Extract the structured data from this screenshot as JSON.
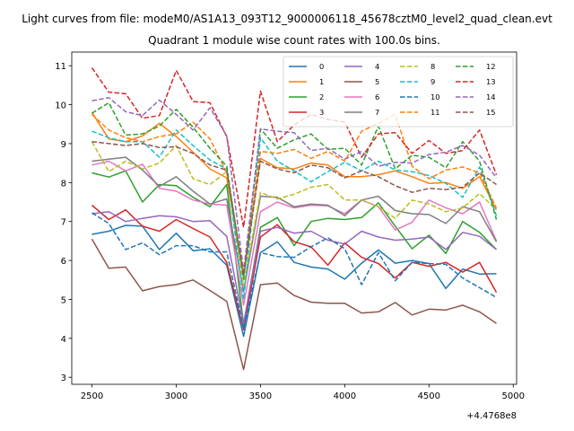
{
  "chart_data": {
    "type": "line",
    "title_line1": "Light curves from file: modeM0/AS1A13_093T12_9000006118_45678cztM0_level2_quad_clean.evt",
    "title_line2": "Quadrant 1 module wise count rates with 100.0s bins.",
    "xlabel": "",
    "ylabel": "",
    "x_offset_label": "+4.4768e8",
    "xlim": [
      2380,
      5020
    ],
    "ylim": [
      2.82,
      11.35
    ],
    "xticks": [
      2500,
      3000,
      3500,
      4000,
      4500,
      5000
    ],
    "yticks": [
      3,
      4,
      5,
      6,
      7,
      8,
      9,
      10,
      11
    ],
    "legend_position": "top-right",
    "x": [
      2500,
      2600,
      2700,
      2800,
      2900,
      3000,
      3100,
      3200,
      3300,
      3400,
      3500,
      3600,
      3700,
      3800,
      3900,
      4000,
      4100,
      4200,
      4300,
      4400,
      4500,
      4600,
      4700,
      4800,
      4900
    ],
    "series": [
      {
        "name": "0",
        "color": "#1f77b4",
        "dash": "solid",
        "values": [
          6.67,
          6.75,
          6.9,
          6.88,
          6.28,
          6.7,
          6.25,
          6.3,
          5.88,
          4.05,
          6.2,
          6.48,
          5.95,
          5.83,
          5.78,
          5.52,
          5.93,
          6.27,
          5.93,
          6.0,
          5.92,
          5.28,
          5.78,
          5.65,
          5.66
        ]
      },
      {
        "name": "1",
        "color": "#ff7f0e",
        "dash": "solid",
        "values": [
          9.8,
          9.12,
          9.05,
          9.2,
          9.52,
          9.18,
          8.78,
          8.35,
          8.12,
          5.58,
          8.62,
          8.38,
          8.35,
          8.5,
          8.45,
          8.15,
          8.15,
          8.2,
          8.3,
          8.15,
          7.98,
          8.0,
          7.85,
          8.15,
          7.3
        ]
      },
      {
        "name": "2",
        "color": "#2ca02c",
        "dash": "solid",
        "values": [
          8.25,
          8.14,
          8.3,
          7.5,
          7.95,
          7.92,
          7.62,
          7.38,
          7.95,
          4.35,
          6.85,
          7.1,
          6.38,
          7.0,
          7.08,
          7.05,
          7.1,
          7.48,
          6.88,
          6.3,
          6.65,
          6.18,
          7.0,
          6.72,
          6.28
        ]
      },
      {
        "name": "3",
        "color": "#d62728",
        "dash": "solid",
        "values": [
          7.42,
          7.05,
          7.3,
          6.88,
          6.75,
          7.05,
          6.82,
          6.6,
          5.95,
          4.22,
          6.6,
          6.92,
          6.48,
          6.35,
          5.88,
          6.45,
          6.08,
          5.92,
          5.55,
          5.95,
          5.85,
          5.95,
          5.7,
          5.95,
          5.18
        ]
      },
      {
        "name": "4",
        "color": "#9467bd",
        "dash": "solid",
        "values": [
          7.2,
          7.25,
          7.0,
          7.08,
          7.15,
          7.12,
          7.0,
          7.02,
          6.62,
          4.38,
          6.75,
          6.85,
          6.7,
          6.75,
          6.52,
          6.42,
          6.75,
          6.6,
          6.52,
          6.55,
          6.6,
          6.28,
          6.72,
          6.62,
          6.28
        ]
      },
      {
        "name": "5",
        "color": "#8c564b",
        "dash": "solid",
        "values": [
          6.55,
          5.8,
          5.83,
          5.22,
          5.33,
          5.38,
          5.5,
          5.23,
          4.95,
          3.2,
          5.38,
          5.42,
          5.1,
          4.93,
          4.9,
          4.9,
          4.65,
          4.68,
          4.92,
          4.6,
          4.75,
          4.73,
          4.85,
          4.68,
          4.38
        ]
      },
      {
        "name": "6",
        "color": "#e377c2",
        "dash": "solid",
        "values": [
          8.45,
          8.55,
          8.3,
          8.47,
          7.85,
          7.78,
          7.55,
          7.45,
          7.42,
          4.85,
          7.25,
          7.5,
          7.35,
          7.42,
          7.4,
          7.2,
          7.55,
          7.38,
          6.78,
          6.98,
          7.55,
          7.35,
          7.2,
          7.5,
          6.5
        ]
      },
      {
        "name": "7",
        "color": "#7f7f7f",
        "dash": "solid",
        "values": [
          8.55,
          8.6,
          8.65,
          8.32,
          7.9,
          8.15,
          7.78,
          7.45,
          7.58,
          5.2,
          7.65,
          7.62,
          7.38,
          7.45,
          7.42,
          7.15,
          7.55,
          7.65,
          7.28,
          7.2,
          7.18,
          6.95,
          7.38,
          7.25,
          6.48
        ]
      },
      {
        "name": "8",
        "color": "#bcbd22",
        "dash": "dashed",
        "values": [
          9.05,
          8.28,
          8.55,
          8.35,
          8.5,
          8.95,
          8.1,
          7.95,
          8.28,
          5.35,
          7.75,
          7.58,
          7.7,
          7.88,
          7.95,
          7.55,
          7.55,
          7.38,
          7.08,
          7.55,
          7.45,
          7.25,
          7.35,
          7.72,
          7.3
        ]
      },
      {
        "name": "9",
        "color": "#17becf",
        "dash": "dashed",
        "values": [
          9.32,
          9.15,
          9.05,
          9.05,
          8.65,
          9.35,
          8.95,
          8.58,
          8.35,
          5.0,
          9.15,
          8.55,
          8.3,
          8.02,
          8.28,
          8.52,
          8.3,
          8.55,
          8.32,
          8.28,
          8.18,
          7.98,
          7.62,
          8.4,
          7.15
        ]
      },
      {
        "name": "10",
        "color": "#1f77b4",
        "dash": "dashed",
        "values": [
          7.22,
          6.95,
          6.28,
          6.45,
          6.15,
          6.38,
          6.38,
          6.22,
          6.22,
          4.25,
          6.2,
          6.1,
          6.08,
          6.35,
          6.58,
          6.3,
          5.38,
          6.2,
          5.48,
          5.95,
          5.92,
          5.9,
          5.55,
          5.3,
          5.05
        ]
      },
      {
        "name": "11",
        "color": "#ff7f0e",
        "dash": "dashed",
        "values": [
          9.75,
          9.35,
          9.15,
          9.05,
          9.18,
          9.25,
          9.55,
          9.12,
          8.25,
          5.65,
          8.8,
          8.75,
          8.85,
          8.62,
          8.8,
          8.55,
          9.32,
          9.52,
          9.75,
          8.42,
          8.1,
          8.32,
          8.4,
          8.25,
          7.35
        ]
      },
      {
        "name": "12",
        "color": "#2ca02c",
        "dash": "dashed",
        "values": [
          9.78,
          10.05,
          9.22,
          9.25,
          9.45,
          9.88,
          9.42,
          8.88,
          8.42,
          5.52,
          9.38,
          8.88,
          9.1,
          9.25,
          8.85,
          8.88,
          8.45,
          9.45,
          8.35,
          8.7,
          8.65,
          8.38,
          9.05,
          8.55,
          7.05
        ]
      },
      {
        "name": "13",
        "color": "#d62728",
        "dash": "dashed",
        "values": [
          10.95,
          10.32,
          10.28,
          9.65,
          9.72,
          10.88,
          10.08,
          10.05,
          9.18,
          6.85,
          10.35,
          9.05,
          9.48,
          9.75,
          9.62,
          9.55,
          8.65,
          9.25,
          9.28,
          8.75,
          9.08,
          8.75,
          8.82,
          9.35,
          8.2
        ]
      },
      {
        "name": "14",
        "color": "#9467bd",
        "dash": "dashed",
        "values": [
          10.1,
          10.18,
          9.82,
          9.72,
          10.12,
          9.75,
          9.35,
          9.92,
          9.2,
          5.72,
          9.38,
          9.32,
          9.28,
          8.82,
          8.88,
          8.6,
          8.8,
          8.42,
          8.52,
          8.5,
          8.72,
          8.78,
          8.95,
          8.7,
          8.12
        ]
      },
      {
        "name": "15",
        "color": "#8c564b",
        "dash": "dashed",
        "values": [
          9.05,
          9.0,
          8.95,
          9.0,
          8.9,
          8.92,
          8.75,
          8.45,
          8.32,
          5.62,
          8.55,
          8.35,
          8.25,
          8.45,
          8.38,
          8.12,
          8.3,
          8.15,
          7.92,
          7.75,
          7.85,
          7.82,
          7.88,
          8.25,
          7.95
        ]
      }
    ]
  }
}
